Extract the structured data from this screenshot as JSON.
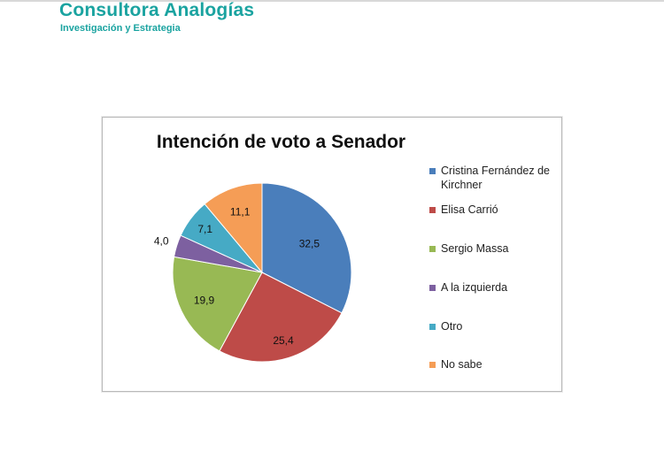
{
  "header": {
    "brand": "Consultora Analogías",
    "tagline": "Investigación y Estrategia"
  },
  "chart_data": {
    "type": "pie",
    "title": "Intención de voto a Senador",
    "categories": [
      "Cristina Fernández de Kirchner",
      "Elisa Carrió",
      "Sergio Massa",
      "A la izquierda",
      "Otro",
      "No sabe"
    ],
    "values": [
      32.5,
      25.4,
      19.9,
      4.0,
      7.1,
      11.1
    ],
    "data_labels": [
      "32,5",
      "25,4",
      "19,9",
      "4,0",
      "7,1",
      "11,1"
    ],
    "colors": [
      "#4a7ebb",
      "#be4b48",
      "#98b954",
      "#7d60a0",
      "#46aac5",
      "#f59d56"
    ],
    "legend_position": "right",
    "start": "12 o'clock, clockwise"
  }
}
